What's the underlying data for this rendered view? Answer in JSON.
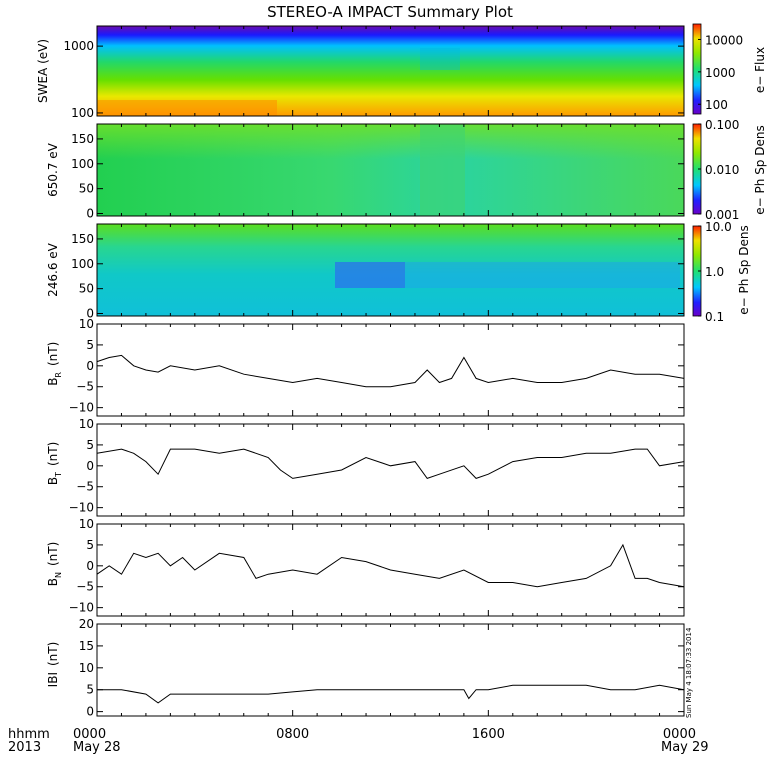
{
  "title": "STEREO-A IMPACT Summary Plot",
  "footer": {
    "row_label": "hhmm",
    "year": "2013",
    "start_date": "May 28",
    "end_date": "May 29"
  },
  "timestamp": "Sun May  4 18:07:33 2014",
  "chart_data": [
    {
      "type": "heatmap",
      "panel": "SWEA spectrogram",
      "ylabel": "SWEA (eV)",
      "yscale": "log",
      "ylim": [
        90,
        2000
      ],
      "y_ticks": [
        100,
        1000
      ],
      "y_tick_labels": [
        "100",
        "1000"
      ],
      "colorbar_label": "e− Flux",
      "colorbar_scale": "log",
      "colorbar_range": [
        50,
        30000
      ],
      "colorbar_ticks": [
        "100",
        "1000",
        "10000"
      ]
    },
    {
      "type": "heatmap",
      "panel": "Pitch angle 650.7 eV",
      "ylabel": "650.7 eV",
      "ylim": [
        -5,
        180
      ],
      "y_ticks": [
        0,
        50,
        100,
        150
      ],
      "y_tick_labels": [
        "0",
        "50",
        "100",
        "150"
      ],
      "colorbar_label": "e− Ph Sp Dens",
      "colorbar_scale": "log",
      "colorbar_range": [
        0.001,
        0.1
      ],
      "colorbar_ticks": [
        "0.001",
        "0.010",
        "0.100"
      ]
    },
    {
      "type": "heatmap",
      "panel": "Pitch angle 246.6 eV",
      "ylabel": "246.6 eV",
      "ylim": [
        -5,
        180
      ],
      "y_ticks": [
        0,
        50,
        100,
        150
      ],
      "y_tick_labels": [
        "0",
        "50",
        "100",
        "150"
      ],
      "colorbar_label": "e− Ph Sp Dens",
      "colorbar_scale": "log",
      "colorbar_range": [
        0.1,
        10
      ],
      "colorbar_ticks": [
        "0.1",
        "1.0",
        "10.0"
      ]
    },
    {
      "type": "line",
      "panel": "BR",
      "ylabel": "B",
      "ylabel_sub": "R",
      "ylabel_unit": "(nT)",
      "ylim": [
        -12,
        10
      ],
      "y_ticks": [
        -10,
        -5,
        0,
        5,
        10
      ],
      "y_tick_labels": [
        "−10",
        "−5",
        "0",
        "5",
        "10"
      ],
      "x_hours": [
        0,
        0.5,
        1,
        1.5,
        2,
        2.5,
        3,
        4,
        5,
        6,
        7,
        8,
        9,
        10,
        11,
        12,
        13,
        13.5,
        14,
        14.5,
        15,
        15.5,
        16,
        17,
        18,
        19,
        20,
        21,
        22,
        23,
        24
      ],
      "values": [
        1,
        2,
        2.5,
        0,
        -1,
        -1.5,
        0,
        -1,
        0,
        -2,
        -3,
        -4,
        -3,
        -4,
        -5,
        -5,
        -4,
        -1,
        -4,
        -3,
        2,
        -3,
        -4,
        -3,
        -4,
        -4,
        -3,
        -1,
        -2,
        -2,
        -3
      ]
    },
    {
      "type": "line",
      "panel": "BT",
      "ylabel": "B",
      "ylabel_sub": "T",
      "ylabel_unit": "(nT)",
      "ylim": [
        -12,
        10
      ],
      "y_ticks": [
        -10,
        -5,
        0,
        5,
        10
      ],
      "y_tick_labels": [
        "−10",
        "−5",
        "0",
        "5",
        "10"
      ],
      "x_hours": [
        0,
        1,
        1.5,
        2,
        2.5,
        3,
        4,
        5,
        6,
        7,
        7.5,
        8,
        9,
        10,
        11,
        12,
        13,
        13.5,
        14,
        15,
        15.5,
        16,
        17,
        18,
        19,
        20,
        21,
        22,
        22.5,
        23,
        24
      ],
      "values": [
        3,
        4,
        3,
        1,
        -2,
        4,
        4,
        3,
        4,
        2,
        -1,
        -3,
        -2,
        -1,
        2,
        0,
        1,
        -3,
        -2,
        0,
        -3,
        -2,
        1,
        2,
        2,
        3,
        3,
        4,
        4,
        0,
        1
      ]
    },
    {
      "type": "line",
      "panel": "BN",
      "ylabel": "B",
      "ylabel_sub": "N",
      "ylabel_unit": "(nT)",
      "ylim": [
        -12,
        10
      ],
      "y_ticks": [
        -10,
        -5,
        0,
        5,
        10
      ],
      "y_tick_labels": [
        "−10",
        "−5",
        "0",
        "5",
        "10"
      ],
      "x_hours": [
        0,
        0.5,
        1,
        1.5,
        2,
        2.5,
        3,
        3.5,
        4,
        5,
        6,
        6.5,
        7,
        8,
        9,
        10,
        11,
        12,
        13,
        14,
        15,
        16,
        17,
        18,
        19,
        20,
        21,
        21.5,
        22,
        22.5,
        23,
        24
      ],
      "values": [
        -2,
        0,
        -2,
        3,
        2,
        3,
        0,
        2,
        -1,
        3,
        2,
        -3,
        -2,
        -1,
        -2,
        2,
        1,
        -1,
        -2,
        -3,
        -1,
        -4,
        -4,
        -5,
        -4,
        -3,
        0,
        5,
        -3,
        -3,
        -4,
        -5
      ]
    },
    {
      "type": "line",
      "panel": "|B|",
      "ylabel": "IBI",
      "ylabel_unit": "(nT)",
      "ylim": [
        -1,
        20
      ],
      "y_ticks": [
        0,
        5,
        10,
        15,
        20
      ],
      "y_tick_labels": [
        "0",
        "5",
        "10",
        "15",
        "20"
      ],
      "x_hours": [
        0,
        1,
        2,
        2.5,
        3,
        4,
        5,
        6,
        7,
        8,
        9,
        10,
        11,
        12,
        13,
        14,
        15,
        15.2,
        15.5,
        16,
        17,
        18,
        19,
        20,
        21,
        22,
        23,
        24
      ],
      "values": [
        5,
        5,
        4,
        2,
        4,
        4,
        4,
        4,
        4,
        4.5,
        5,
        5,
        5,
        5,
        5,
        5,
        5,
        3,
        5,
        5,
        6,
        6,
        6,
        6,
        5,
        5,
        6,
        5
      ]
    }
  ],
  "x_axis": {
    "range_hours": [
      0,
      24
    ],
    "ticks_hours": [
      0,
      8,
      16,
      24
    ],
    "tick_labels": [
      "0000",
      "0800",
      "1600",
      "0000"
    ]
  }
}
